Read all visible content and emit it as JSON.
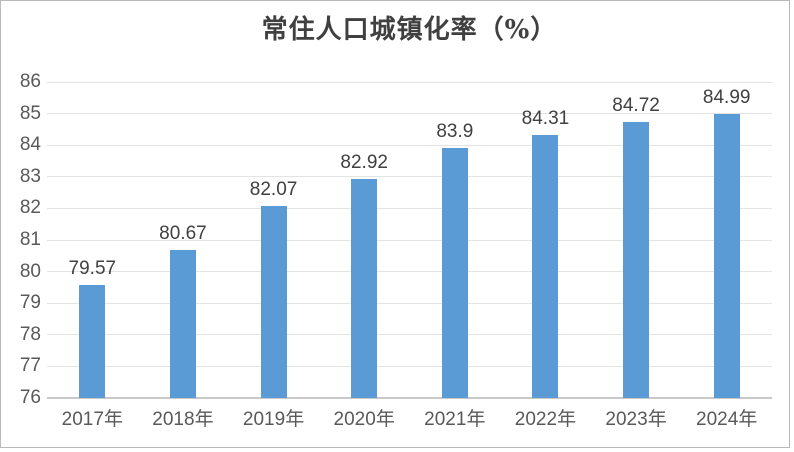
{
  "chart_data": {
    "type": "bar",
    "title": "常住人口城镇化率（%）",
    "categories": [
      "2017年",
      "2018年",
      "2019年",
      "2020年",
      "2021年",
      "2022年",
      "2023年",
      "2024年"
    ],
    "values": [
      79.57,
      80.67,
      82.07,
      82.92,
      83.9,
      84.31,
      84.72,
      84.99
    ],
    "data_labels": [
      "79.57",
      "80.67",
      "82.07",
      "82.92",
      "83.9",
      "84.31",
      "84.72",
      "84.99"
    ],
    "xlabel": "",
    "ylabel": "",
    "ylim": [
      76,
      86
    ],
    "ytick_step": 1,
    "yticks": [
      76,
      77,
      78,
      79,
      80,
      81,
      82,
      83,
      84,
      85,
      86
    ],
    "grid": true,
    "legend_position": "none",
    "colors": {
      "bar": "#5B9BD5",
      "gridline": "#e3e3e3",
      "axis_line": "#c9c9c9",
      "axis_label": "#595959",
      "data_label": "#404040",
      "title": "#404040",
      "frame_border": "#b9b9b9",
      "background": "#ffffff"
    }
  }
}
